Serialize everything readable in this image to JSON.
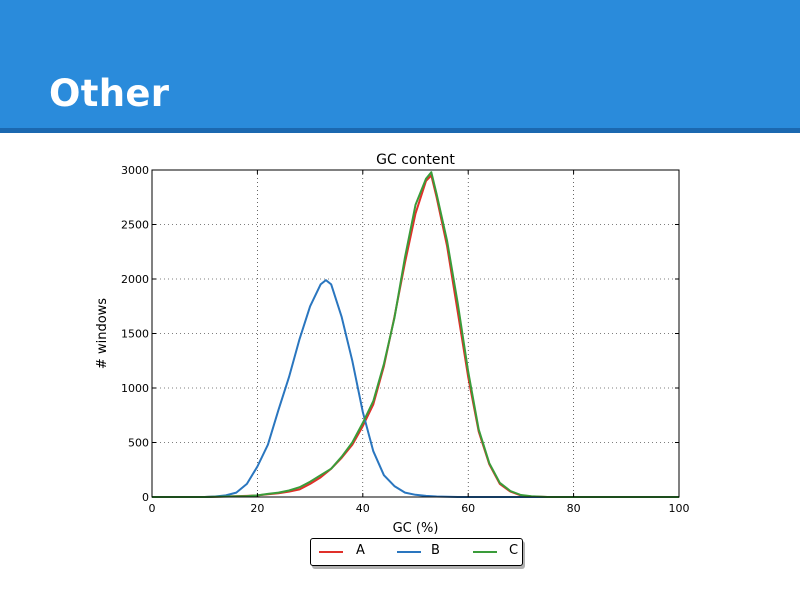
{
  "slide": {
    "title": "Other"
  },
  "colors": {
    "header": "#2a8bdb",
    "header_rule": "#1b68b0"
  },
  "chart_data": {
    "type": "line",
    "title": "GC content",
    "xlabel": "GC (%)",
    "ylabel": "# windows",
    "xlim": [
      0,
      100
    ],
    "ylim": [
      0,
      3000
    ],
    "xticks": [
      "0",
      "20",
      "40",
      "60",
      "80",
      "100"
    ],
    "yticks": [
      "0",
      "500",
      "1000",
      "1500",
      "2000",
      "2500",
      "3000"
    ],
    "grid": true,
    "legend_position": "bottom-center",
    "series": [
      {
        "name": "A",
        "color": "#e0302a",
        "x": [
          0,
          10,
          18,
          20,
          22,
          24,
          26,
          28,
          30,
          32,
          34,
          36,
          38,
          40,
          42,
          44,
          46,
          48,
          50,
          52,
          53,
          54,
          56,
          58,
          60,
          62,
          64,
          66,
          68,
          70,
          72,
          75,
          80,
          90,
          100
        ],
        "y": [
          0,
          0,
          10,
          15,
          25,
          35,
          50,
          70,
          120,
          180,
          260,
          360,
          480,
          650,
          850,
          1200,
          1650,
          2150,
          2600,
          2900,
          2950,
          2750,
          2300,
          1700,
          1100,
          600,
          300,
          120,
          50,
          15,
          5,
          0,
          0,
          0,
          0
        ]
      },
      {
        "name": "B",
        "color": "#2a76bf",
        "x": [
          0,
          10,
          12,
          14,
          16,
          18,
          20,
          22,
          24,
          26,
          28,
          30,
          32,
          33,
          34,
          36,
          38,
          40,
          42,
          44,
          46,
          48,
          50,
          52,
          54,
          56,
          58,
          60,
          80,
          100
        ],
        "y": [
          0,
          0,
          5,
          15,
          40,
          120,
          280,
          480,
          800,
          1100,
          1450,
          1750,
          1950,
          1990,
          1950,
          1650,
          1250,
          780,
          420,
          200,
          100,
          40,
          20,
          10,
          5,
          3,
          0,
          0,
          0,
          0
        ]
      },
      {
        "name": "C",
        "color": "#3a9c3a",
        "x": [
          0,
          10,
          18,
          20,
          22,
          24,
          26,
          28,
          30,
          32,
          34,
          36,
          38,
          40,
          42,
          44,
          46,
          48,
          50,
          52,
          53,
          54,
          56,
          58,
          60,
          62,
          64,
          66,
          68,
          70,
          72,
          75,
          80,
          90,
          100
        ],
        "y": [
          0,
          0,
          8,
          15,
          28,
          40,
          60,
          90,
          140,
          200,
          260,
          370,
          500,
          680,
          880,
          1220,
          1640,
          2200,
          2680,
          2920,
          2980,
          2780,
          2350,
          1780,
          1150,
          620,
          310,
          130,
          55,
          18,
          6,
          0,
          0,
          0,
          0
        ]
      }
    ]
  }
}
